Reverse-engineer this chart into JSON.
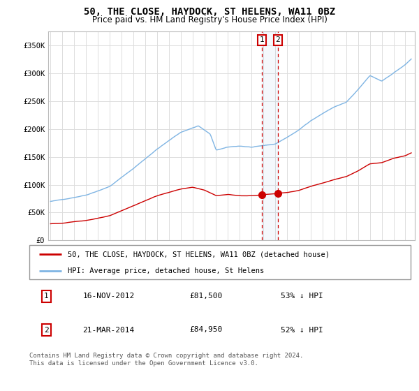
{
  "title": "50, THE CLOSE, HAYDOCK, ST HELENS, WA11 0BZ",
  "subtitle": "Price paid vs. HM Land Registry's House Price Index (HPI)",
  "title_fontsize": 10,
  "subtitle_fontsize": 8.5,
  "ylabel_ticks": [
    "£0",
    "£50K",
    "£100K",
    "£150K",
    "£200K",
    "£250K",
    "£300K",
    "£350K"
  ],
  "ytick_values": [
    0,
    50000,
    100000,
    150000,
    200000,
    250000,
    300000,
    350000
  ],
  "ylim": [
    0,
    375000
  ],
  "xlim_start": 1994.8,
  "xlim_end": 2025.8,
  "hpi_color": "#7EB4E3",
  "price_color": "#CC0000",
  "marker1_date": 2012.88,
  "marker2_date": 2014.22,
  "marker1_price": 81500,
  "marker2_price": 84950,
  "legend_line1": "50, THE CLOSE, HAYDOCK, ST HELENS, WA11 0BZ (detached house)",
  "legend_line2": "HPI: Average price, detached house, St Helens",
  "table_row1": [
    "1",
    "16-NOV-2012",
    "£81,500",
    "53% ↓ HPI"
  ],
  "table_row2": [
    "2",
    "21-MAR-2014",
    "£84,950",
    "52% ↓ HPI"
  ],
  "footer": "Contains HM Land Registry data © Crown copyright and database right 2024.\nThis data is licensed under the Open Government Licence v3.0.",
  "background_color": "#ffffff",
  "grid_color": "#dddddd"
}
